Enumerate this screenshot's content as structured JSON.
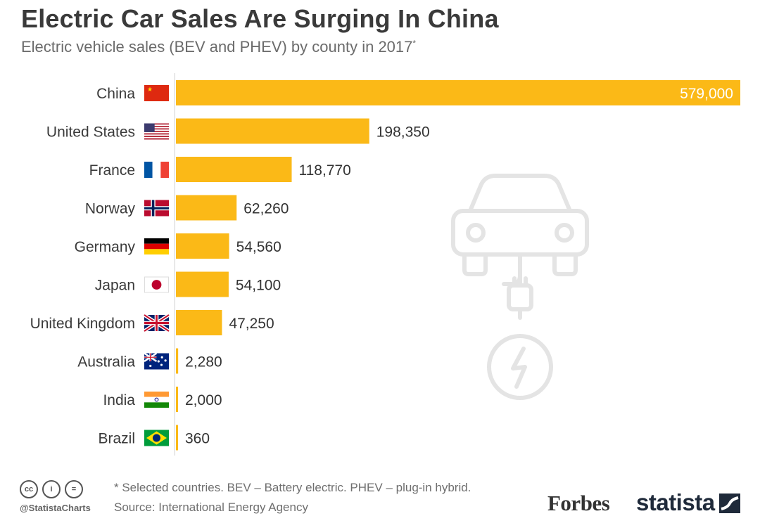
{
  "title": "Electric Car Sales Are Surging In China",
  "subtitle": "Electric vehicle sales (BEV and PHEV) by county in 2017",
  "subtitle_mark": "*",
  "chart_data": {
    "type": "bar",
    "orientation": "horizontal",
    "title": "Electric Car Sales Are Surging In China",
    "subtitle": "Electric vehicle sales (BEV and PHEV) by county in 2017*",
    "categories": [
      "China",
      "United States",
      "France",
      "Norway",
      "Germany",
      "Japan",
      "United Kingdom",
      "Australia",
      "India",
      "Brazil"
    ],
    "values": [
      579000,
      198350,
      118770,
      62260,
      54560,
      54100,
      47250,
      2280,
      2000,
      360
    ],
    "labels": [
      "579,000",
      "198,350",
      "118,770",
      "62,260",
      "54,560",
      "54,100",
      "47,250",
      "2,280",
      "2,000",
      "360"
    ],
    "flags": [
      "china-flag-icon",
      "usa-flag-icon",
      "france-flag-icon",
      "norway-flag-icon",
      "germany-flag-icon",
      "japan-flag-icon",
      "uk-flag-icon",
      "australia-flag-icon",
      "india-flag-icon",
      "brazil-flag-icon"
    ],
    "xlim": [
      0,
      579000
    ],
    "bar_color": "#fbb917",
    "label_inside_color": "#ffffff",
    "label_outside_color": "#333333",
    "grid": false,
    "legend": "none"
  },
  "footer": {
    "note": "* Selected countries. BEV – Battery electric. PHEV – plug-in hybrid.",
    "source": "Source: International Energy Agency",
    "handle": "@StatistaCharts",
    "license_icons": [
      "cc",
      "i",
      "="
    ]
  },
  "brands": {
    "forbes": "Forbes",
    "statista": "statista"
  },
  "icons": {
    "background": "electric-car-plug-icon"
  }
}
